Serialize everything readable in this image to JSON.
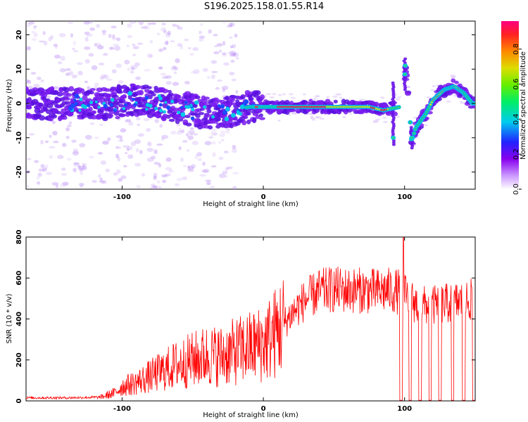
{
  "title": "S196.2025.158.01.55.R14",
  "chart_data": [
    {
      "type": "heatmap",
      "xlabel": "Height of straight line (km)",
      "ylabel": "Frequency (Hz)",
      "xlim": [
        -168,
        150
      ],
      "ylim": [
        -25,
        24
      ],
      "x_ticks": [
        -100,
        0,
        100
      ],
      "y_ticks": [
        20,
        10,
        0,
        -10,
        -20
      ],
      "colorbar": {
        "label": "Normalized spectral amplitude",
        "ticks": [
          0.0,
          0.2,
          0.4,
          0.6,
          0.8
        ],
        "range": [
          0,
          0.96
        ]
      },
      "track": [
        {
          "x": -165,
          "y": 0
        },
        {
          "x": -130,
          "y": 0
        },
        {
          "x": -110,
          "y": 0
        },
        {
          "x": -90,
          "y": 1
        },
        {
          "x": -70,
          "y": 0
        },
        {
          "x": -50,
          "y": -2
        },
        {
          "x": -35,
          "y": -3
        },
        {
          "x": -20,
          "y": -2
        },
        {
          "x": -10,
          "y": -1
        },
        {
          "x": 0,
          "y": -1
        },
        {
          "x": 20,
          "y": -1
        },
        {
          "x": 50,
          "y": -1
        },
        {
          "x": 75,
          "y": -1
        },
        {
          "x": 85,
          "y": -2
        },
        {
          "x": 97,
          "y": -1
        },
        {
          "x": 100,
          "y": 9
        },
        {
          "x": 101,
          "y": 11
        },
        {
          "x": 105,
          "y": -11
        },
        {
          "x": 108,
          "y": -7
        },
        {
          "x": 115,
          "y": -3
        },
        {
          "x": 120,
          "y": 1
        },
        {
          "x": 128,
          "y": 4
        },
        {
          "x": 135,
          "y": 5
        },
        {
          "x": 142,
          "y": 3
        },
        {
          "x": 148,
          "y": 0
        }
      ]
    },
    {
      "type": "line",
      "xlabel": "Height of straight line (km)",
      "ylabel": "SNR (10 * v/v)",
      "xlim": [
        -168,
        150
      ],
      "ylim": [
        0,
        800
      ],
      "x_ticks": [
        -100,
        0,
        100
      ],
      "y_ticks": [
        0,
        200,
        400,
        600,
        800
      ],
      "series": [
        {
          "color": "#ff0000",
          "x": [
            -168,
            -140,
            -115,
            -105,
            -100,
            -90,
            -80,
            -70,
            -60,
            -50,
            -40,
            -30,
            -20,
            -10,
            0,
            10,
            20,
            30,
            40,
            50,
            60,
            70,
            80,
            88,
            95,
            100,
            110,
            120,
            130,
            140,
            150
          ],
          "values": [
            15,
            15,
            18,
            40,
            70,
            90,
            120,
            150,
            180,
            200,
            220,
            220,
            240,
            260,
            280,
            340,
            430,
            500,
            540,
            550,
            545,
            545,
            540,
            545,
            540,
            520,
            470,
            470,
            480,
            490,
            500
          ]
        }
      ]
    }
  ]
}
